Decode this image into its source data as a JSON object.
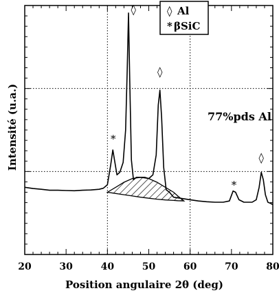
{
  "chart_data": {
    "type": "line",
    "xlabel": "Position angulaire  2θ (deg)",
    "ylabel": "Intensité  (u.a.)",
    "xlim": [
      20,
      80
    ],
    "x_ticks": [
      "20",
      "30",
      "40",
      "50",
      "60",
      "70",
      "80"
    ],
    "grid": "dotted",
    "legend": {
      "placement": "top-center-right",
      "entries": [
        {
          "symbol": "◊",
          "label": "Al"
        },
        {
          "symbol": "*",
          "label": "βSiC"
        }
      ]
    },
    "annotation": "77%pds Al",
    "series": [
      {
        "x": [
          20,
          22,
          24,
          26,
          28,
          30,
          32,
          34,
          36,
          38,
          39,
          40,
          40.8,
          41.3,
          41.8,
          42.3,
          43,
          43.8,
          44.4,
          44.8,
          45.1,
          45.4,
          45.8,
          46.3,
          47,
          48,
          49,
          50,
          51,
          51.8,
          52.3,
          52.7,
          53.1,
          53.6,
          54.2,
          55,
          56,
          58,
          60,
          62,
          64,
          66,
          68,
          69.5,
          70.4,
          71,
          71.8,
          73,
          75,
          76,
          76.7,
          77.2,
          77.7,
          78.2,
          78.8,
          79.5,
          80
        ],
        "y": [
          0.27,
          0.265,
          0.262,
          0.258,
          0.258,
          0.257,
          0.256,
          0.258,
          0.259,
          0.262,
          0.266,
          0.28,
          0.36,
          0.42,
          0.37,
          0.32,
          0.33,
          0.37,
          0.5,
          0.75,
          0.97,
          0.7,
          0.38,
          0.3,
          0.31,
          0.31,
          0.31,
          0.305,
          0.32,
          0.4,
          0.6,
          0.66,
          0.55,
          0.35,
          0.26,
          0.25,
          0.23,
          0.225,
          0.22,
          0.215,
          0.212,
          0.21,
          0.21,
          0.215,
          0.255,
          0.25,
          0.22,
          0.21,
          0.21,
          0.22,
          0.27,
          0.33,
          0.3,
          0.24,
          0.21,
          0.205,
          0.2
        ]
      }
    ],
    "shaded_hump": {
      "x": [
        40,
        42,
        44,
        46,
        48,
        50,
        52,
        54,
        56,
        57,
        58.5
      ],
      "y_top": [
        0.25,
        0.27,
        0.29,
        0.305,
        0.31,
        0.305,
        0.29,
        0.27,
        0.25,
        0.235,
        0.215
      ],
      "y_base": [
        0.25,
        0.245,
        0.24,
        0.235,
        0.23,
        0.226,
        0.222,
        0.219,
        0.217,
        0.216,
        0.215
      ]
    },
    "peak_markers": [
      {
        "x": 41.4,
        "y": 0.45,
        "symbol": "*"
      },
      {
        "x": 46.3,
        "y": 0.97,
        "symbol": "◊"
      },
      {
        "x": 52.7,
        "y": 0.72,
        "symbol": "◊"
      },
      {
        "x": 70.6,
        "y": 0.265,
        "symbol": "*"
      },
      {
        "x": 77.2,
        "y": 0.375,
        "symbol": "◊"
      }
    ]
  }
}
